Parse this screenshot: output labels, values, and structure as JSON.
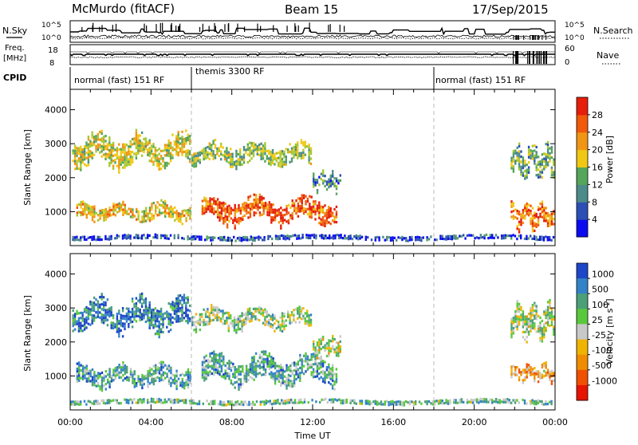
{
  "header": {
    "station": "McMurdo (fitACF)",
    "beam": "Beam 15",
    "date": "17/Sep/2015"
  },
  "top_panels": {
    "nsky_label": "N.Sky",
    "nsearch_label": "N.Search",
    "nsky_ticks": [
      "10^5",
      "10^0"
    ],
    "nsearch_ticks": [
      "10^5",
      "10^0"
    ],
    "freq_label_1": "Freq.",
    "freq_label_2": "[MHz]",
    "freq_ticks": [
      "18",
      "8"
    ],
    "nave_label": "Nave",
    "nave_ticks": [
      "60",
      "0"
    ],
    "cpid_label": "CPID",
    "cpid_segments": [
      {
        "label": "normal (fast) 151 RF",
        "start_h": 0,
        "end_h": 6
      },
      {
        "label": "themis 3300 RF",
        "start_h": 6,
        "end_h": 18
      },
      {
        "label": "normal (fast) 151 RF",
        "start_h": 18,
        "end_h": 24
      }
    ]
  },
  "chart_data": [
    {
      "type": "heatmap",
      "title": "",
      "xlabel": "Time UT",
      "ylabel": "Slant Range [km]",
      "xlim": [
        0,
        24
      ],
      "ylim": [
        0,
        4600
      ],
      "y_ticks": [
        1000,
        2000,
        3000,
        4000
      ],
      "y_tick_labels": [
        "1000",
        "2000",
        "3000",
        "4000"
      ],
      "colorbar": {
        "label": "Power [dB]",
        "tick_labels": [
          "4",
          "8",
          "12",
          "16",
          "20",
          "24",
          "28"
        ],
        "colors": [
          "#0b0bf0",
          "#2b4fb4",
          "#4d8a8a",
          "#55a55a",
          "#a6c832",
          "#f0c814",
          "#f09614",
          "#f05a0a",
          "#e61e0a"
        ]
      },
      "echo_regions": [
        {
          "t_start": 0.1,
          "t_end": 6.0,
          "r_center": 2800,
          "r_width": 900,
          "level": 0.55
        },
        {
          "t_start": 0.3,
          "t_end": 6.0,
          "r_center": 1000,
          "r_width": 500,
          "level": 0.6
        },
        {
          "t_start": 6.0,
          "t_end": 12.0,
          "r_center": 2700,
          "r_width": 600,
          "level": 0.45
        },
        {
          "t_start": 6.5,
          "t_end": 13.3,
          "r_center": 1050,
          "r_width": 700,
          "level": 0.85
        },
        {
          "t_start": 12.0,
          "t_end": 13.5,
          "r_center": 1900,
          "r_width": 500,
          "level": 0.3
        },
        {
          "t_start": 0.0,
          "t_end": 24.0,
          "r_center": 250,
          "r_width": 150,
          "level": 0.15
        },
        {
          "t_start": 21.8,
          "t_end": 24.0,
          "r_center": 900,
          "r_width": 700,
          "level": 0.8
        },
        {
          "t_start": 21.8,
          "t_end": 24.0,
          "r_center": 2500,
          "r_width": 900,
          "level": 0.4
        }
      ]
    },
    {
      "type": "heatmap",
      "title": "",
      "xlabel": "Time UT",
      "ylabel": "Slant Range [km]",
      "xlim": [
        0,
        24
      ],
      "ylim": [
        0,
        4600
      ],
      "y_ticks": [
        1000,
        2000,
        3000,
        4000
      ],
      "y_tick_labels": [
        "1000",
        "2000",
        "3000",
        "4000"
      ],
      "x_tick_labels": [
        "00:00",
        "04:00",
        "08:00",
        "12:00",
        "16:00",
        "20:00",
        "00:00"
      ],
      "colorbar": {
        "label": "Velocity [m s",
        "label_sup": "-1",
        "label_end": "]",
        "tick_labels": [
          "1000",
          "500",
          "100",
          "25",
          "-25",
          "-100",
          "-500",
          "-1000"
        ],
        "colors": [
          "#1e46c8",
          "#3282c8",
          "#4ba078",
          "#5ac83c",
          "#c8c8c8",
          "#f0b400",
          "#f08c00",
          "#f05000",
          "#e61400"
        ]
      },
      "echo_regions": [
        {
          "t_start": 0.1,
          "t_end": 6.0,
          "r_center": 2800,
          "r_width": 900,
          "level": 0.15
        },
        {
          "t_start": 0.3,
          "t_end": 6.0,
          "r_center": 1000,
          "r_width": 600,
          "level": 0.3
        },
        {
          "t_start": 6.0,
          "t_end": 12.0,
          "r_center": 2700,
          "r_width": 600,
          "level": 0.42
        },
        {
          "t_start": 6.5,
          "t_end": 13.3,
          "r_center": 1200,
          "r_width": 800,
          "level": 0.3
        },
        {
          "t_start": 12.0,
          "t_end": 13.5,
          "r_center": 1900,
          "r_width": 500,
          "level": 0.5
        },
        {
          "t_start": 0.0,
          "t_end": 24.0,
          "r_center": 250,
          "r_width": 150,
          "level": 0.35
        },
        {
          "t_start": 21.8,
          "t_end": 24.0,
          "r_center": 1100,
          "r_width": 500,
          "level": 0.65
        },
        {
          "t_start": 21.8,
          "t_end": 24.0,
          "r_center": 2600,
          "r_width": 900,
          "level": 0.45
        }
      ]
    }
  ]
}
